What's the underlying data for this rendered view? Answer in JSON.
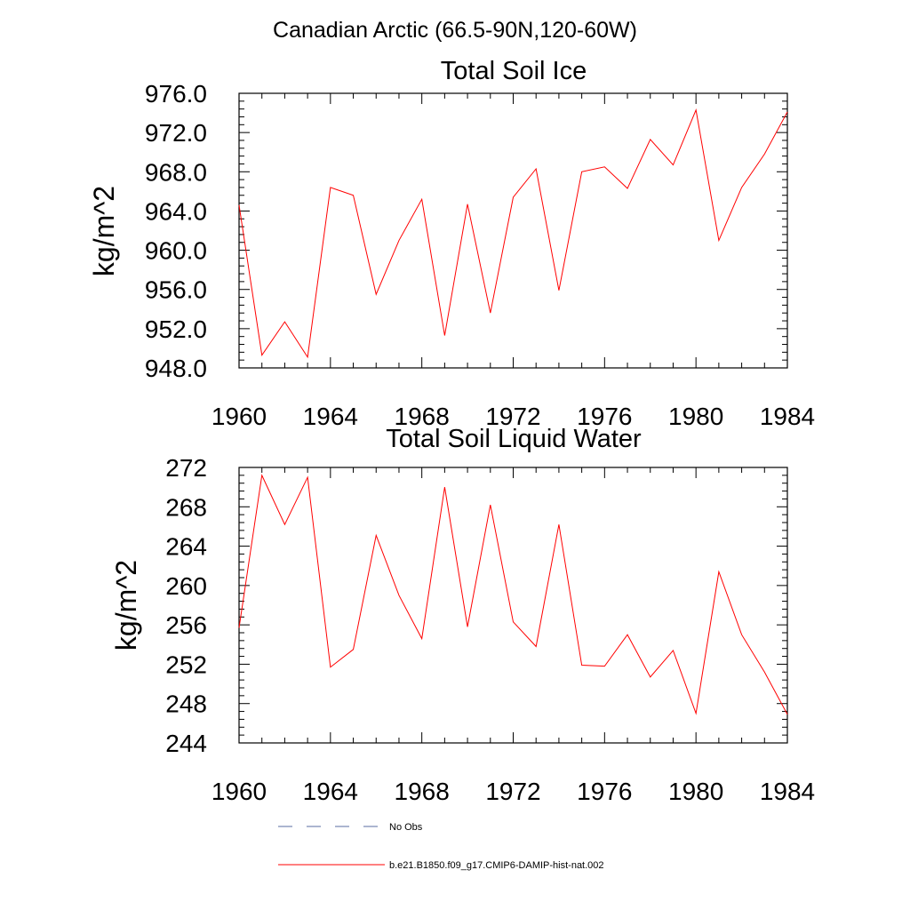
{
  "figure": {
    "suptitle": "Canadian Arctic (66.5-90N,120-60W)"
  },
  "colors": {
    "model_line": "#ff0000",
    "obs_line": "#5a6da0",
    "axes": "#000000"
  },
  "legend": {
    "obs_label": "No Obs",
    "model_label": "b.e21.B1850.f09_g17.CMIP6-DAMIP-hist-nat.002"
  },
  "chart_data": [
    {
      "type": "line",
      "title": "Total Soil Ice",
      "xlabel": "",
      "ylabel": "kg/m^2",
      "xlim": [
        1960,
        1984
      ],
      "ylim": [
        948,
        976
      ],
      "x_ticks": [
        "1960",
        "1964",
        "1968",
        "1972",
        "1976",
        "1980",
        "1984"
      ],
      "y_ticks": [
        "948.0",
        "952.0",
        "956.0",
        "960.0",
        "964.0",
        "968.0",
        "972.0",
        "976.0"
      ],
      "grid": false,
      "x": [
        1960,
        1961,
        1962,
        1963,
        1964,
        1965,
        1966,
        1967,
        1968,
        1969,
        1970,
        1971,
        1972,
        1973,
        1974,
        1975,
        1976,
        1977,
        1978,
        1979,
        1980,
        1981,
        1982,
        1983,
        1984
      ],
      "series": [
        {
          "name": "b.e21.B1850.f09_g17.CMIP6-DAMIP-hist-nat.002",
          "color": "#ff0000",
          "values": [
            964.6,
            949.3,
            952.7,
            949.1,
            966.4,
            965.6,
            955.5,
            961.0,
            965.2,
            951.3,
            964.7,
            953.6,
            965.4,
            968.3,
            955.9,
            968.0,
            968.5,
            966.3,
            971.3,
            968.7,
            974.3,
            961.0,
            966.4,
            969.8,
            974.1
          ]
        }
      ]
    },
    {
      "type": "line",
      "title": "Total Soil Liquid Water",
      "xlabel": "",
      "ylabel": "kg/m^2",
      "xlim": [
        1960,
        1984
      ],
      "ylim": [
        244,
        272
      ],
      "x_ticks": [
        "1960",
        "1964",
        "1968",
        "1972",
        "1976",
        "1980",
        "1984"
      ],
      "y_ticks": [
        "244",
        "248",
        "252",
        "256",
        "260",
        "264",
        "268",
        "272"
      ],
      "grid": false,
      "x": [
        1960,
        1961,
        1962,
        1963,
        1964,
        1965,
        1966,
        1967,
        1968,
        1969,
        1970,
        1971,
        1972,
        1973,
        1974,
        1975,
        1976,
        1977,
        1978,
        1979,
        1980,
        1981,
        1982,
        1983,
        1984
      ],
      "series": [
        {
          "name": "b.e21.B1850.f09_g17.CMIP6-DAMIP-hist-nat.002",
          "color": "#ff0000",
          "values": [
            255.7,
            271.2,
            266.2,
            271.0,
            251.7,
            253.5,
            265.1,
            259.0,
            254.6,
            270.0,
            255.8,
            268.2,
            256.3,
            253.8,
            266.2,
            251.9,
            251.8,
            255.0,
            250.7,
            253.4,
            247.0,
            261.4,
            255.0,
            251.2,
            246.9
          ]
        }
      ]
    }
  ]
}
